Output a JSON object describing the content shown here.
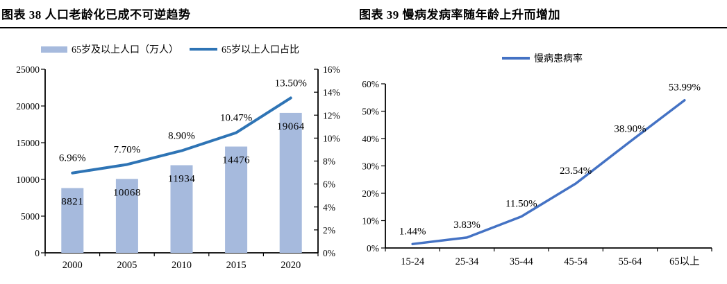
{
  "figures": [
    {
      "caption": "图表 38 人口老龄化已成不可逆趋势"
    },
    {
      "caption": "图表 39 慢病发病率随年龄上升而增加"
    }
  ],
  "colors": {
    "bar_fill": "#a6badd",
    "line_left": "#2e74b5",
    "line_right": "#4472c4",
    "axis": "#000000",
    "caption_rule": "#000000"
  },
  "chart_data": [
    {
      "type": "bar",
      "subtype": "bar+line-dual-axis",
      "title": "图表 38 人口老龄化已成不可逆趋势",
      "categories": [
        "2000",
        "2005",
        "2010",
        "2015",
        "2020"
      ],
      "series": [
        {
          "name": "65岁及以上人口（万人）",
          "type": "bar",
          "axis": "left",
          "color": "#a6badd",
          "values": [
            8821,
            10068,
            11934,
            14476,
            19064
          ],
          "labels": [
            "8821",
            "10068",
            "11934",
            "14476",
            "19064"
          ]
        },
        {
          "name": "65岁以上人口占比",
          "type": "line",
          "axis": "right",
          "color": "#2e74b5",
          "values": [
            6.96,
            7.7,
            8.9,
            10.47,
            13.5
          ],
          "labels": [
            "6.96%",
            "7.70%",
            "8.90%",
            "10.47%",
            "13.50%"
          ]
        }
      ],
      "left_axis": {
        "min": 0,
        "max": 25000,
        "step": 5000,
        "ticks": [
          "25000",
          "20000",
          "15000",
          "10000",
          "5000",
          "0"
        ]
      },
      "right_axis": {
        "min": 0,
        "max": 16,
        "step": 2,
        "ticks": [
          "16%",
          "14%",
          "12%",
          "10%",
          "8%",
          "6%",
          "4%",
          "2%",
          "0%"
        ]
      },
      "legend_position": "top",
      "grid": false
    },
    {
      "type": "line",
      "title": "图表 39 慢病发病率随年龄上升而增加",
      "categories": [
        "15-24",
        "25-34",
        "35-44",
        "45-54",
        "55-64",
        "65以上"
      ],
      "series": [
        {
          "name": "慢病患病率",
          "type": "line",
          "color": "#4472c4",
          "values": [
            1.44,
            3.83,
            11.5,
            23.54,
            38.9,
            53.99
          ],
          "labels": [
            "1.44%",
            "3.83%",
            "11.50%",
            "23.54%",
            "38.90%",
            "53.99%"
          ]
        }
      ],
      "y_axis": {
        "min": 0,
        "max": 60,
        "step": 10,
        "ticks": [
          "60%",
          "50%",
          "40%",
          "30%",
          "20%",
          "10%",
          "0%"
        ]
      },
      "legend_position": "top",
      "grid": false
    }
  ]
}
